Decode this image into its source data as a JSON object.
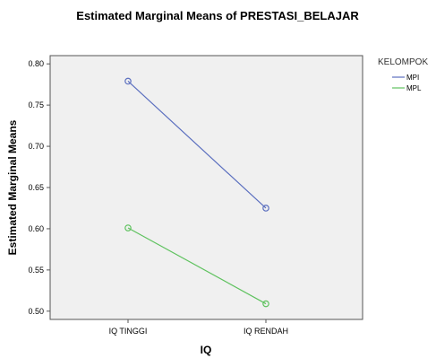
{
  "chart_data": {
    "type": "line",
    "title": "Estimated Marginal Means of PRESTASI_BELAJAR",
    "xlabel": "IQ",
    "ylabel": "Estimated Marginal Means",
    "categories": [
      "IQ TINGGI",
      "IQ RENDAH"
    ],
    "ylim": [
      0.49,
      0.81
    ],
    "yticks": [
      "0.50",
      "0.55",
      "0.60",
      "0.65",
      "0.70",
      "0.75",
      "0.80"
    ],
    "grid": false,
    "legend_title": "KELOMPOK",
    "legend_position": "top-right outside plot",
    "series": [
      {
        "name": "MPI",
        "color": "#5b6fbf",
        "values": [
          0.779,
          0.625
        ]
      },
      {
        "name": "MPL",
        "color": "#5fc25f",
        "values": [
          0.601,
          0.509
        ]
      }
    ],
    "plot_background": "#f0f0f0",
    "marker": "open-circle"
  }
}
